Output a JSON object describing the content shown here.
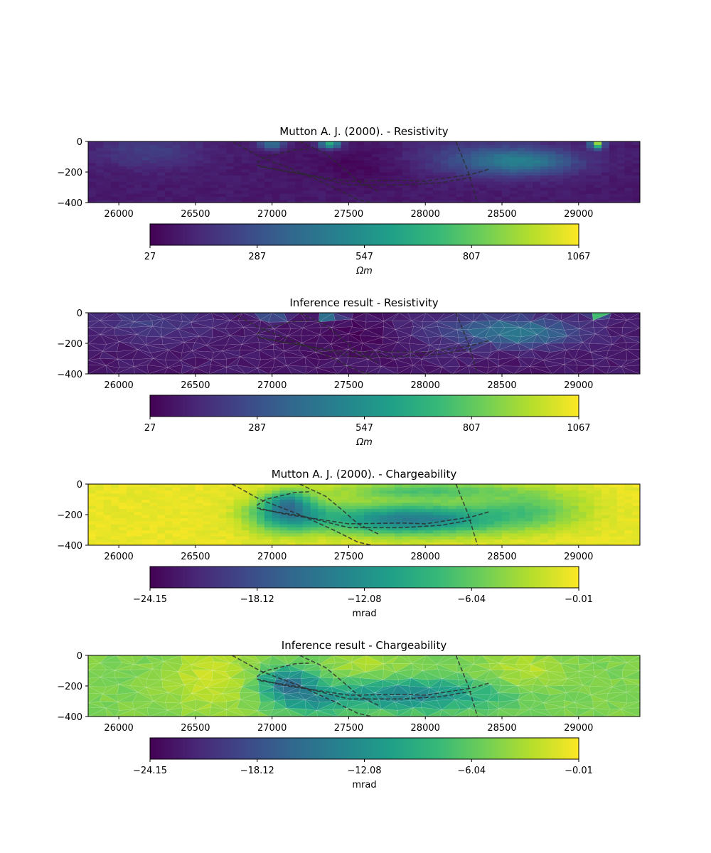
{
  "colors": {
    "viridis": [
      "#440154",
      "#482878",
      "#3e4989",
      "#31688e",
      "#26828e",
      "#1f9e89",
      "#35b779",
      "#6ece58",
      "#b5de2b",
      "#fde725"
    ],
    "fault_line": "#2b2b2b"
  },
  "chart_data": [
    {
      "type": "heatmap",
      "title": "Mutton A. J. (2000). - Resistivity",
      "kind": "grid",
      "field": "resistivity",
      "xlim": [
        25800,
        29400
      ],
      "ylim": [
        -400,
        0
      ],
      "xticks": [
        "26000",
        "26500",
        "27000",
        "27500",
        "28000",
        "28500",
        "29000"
      ],
      "yticks": [
        "0",
        "−200",
        "−400"
      ],
      "colorbar": {
        "ticks": [
          "27",
          "287",
          "547",
          "807",
          "1067"
        ],
        "label": "Ωm",
        "range": [
          27,
          1067
        ]
      }
    },
    {
      "type": "heatmap",
      "title": "Inference result - Resistivity",
      "kind": "mesh",
      "field": "resistivity",
      "xlim": [
        25800,
        29400
      ],
      "ylim": [
        -400,
        0
      ],
      "xticks": [
        "26000",
        "26500",
        "27000",
        "27500",
        "28000",
        "28500",
        "29000"
      ],
      "yticks": [
        "0",
        "−200",
        "−400"
      ],
      "colorbar": {
        "ticks": [
          "27",
          "287",
          "547",
          "807",
          "1067"
        ],
        "label": "Ωm",
        "range": [
          27,
          1067
        ]
      }
    },
    {
      "type": "heatmap",
      "title": "Mutton A. J. (2000). - Chargeability",
      "kind": "grid",
      "field": "chargeability",
      "xlim": [
        25800,
        29400
      ],
      "ylim": [
        -400,
        0
      ],
      "xticks": [
        "26000",
        "26500",
        "27000",
        "27500",
        "28000",
        "28500",
        "29000"
      ],
      "yticks": [
        "0",
        "−200",
        "−400"
      ],
      "colorbar": {
        "ticks": [
          "−24.15",
          "−18.12",
          "−12.08",
          "−6.04",
          "−0.01"
        ],
        "label": "mrad",
        "range": [
          -24.15,
          -0.01
        ]
      }
    },
    {
      "type": "heatmap",
      "title": "Inference result - Chargeability",
      "kind": "mesh",
      "field": "chargeability",
      "xlim": [
        25800,
        29400
      ],
      "ylim": [
        -400,
        0
      ],
      "xticks": [
        "26000",
        "26500",
        "27000",
        "27500",
        "28000",
        "28500",
        "29000"
      ],
      "yticks": [
        "0",
        "−200",
        "−400"
      ],
      "colorbar": {
        "ticks": [
          "−24.15",
          "−18.12",
          "−12.08",
          "−6.04",
          "−0.01"
        ],
        "label": "mrad",
        "range": [
          -24.15,
          -0.01
        ]
      }
    }
  ],
  "overlay_lines": [
    {
      "name": "fault-1",
      "points": [
        [
          26740,
          0
        ],
        [
          26920,
          -100
        ],
        [
          27180,
          -200
        ],
        [
          27400,
          -300
        ],
        [
          27560,
          -380
        ],
        [
          27650,
          -400
        ]
      ]
    },
    {
      "name": "fault-2",
      "points": [
        [
          27180,
          0
        ],
        [
          27350,
          -80
        ],
        [
          27470,
          -180
        ],
        [
          27560,
          -260
        ],
        [
          27700,
          -330
        ]
      ]
    },
    {
      "name": "fault-3",
      "points": [
        [
          28200,
          0
        ],
        [
          28280,
          -200
        ],
        [
          28340,
          -400
        ]
      ]
    },
    {
      "name": "ore-body-upper",
      "points": [
        [
          26900,
          -140
        ],
        [
          26960,
          -100
        ],
        [
          27150,
          -55
        ],
        [
          27240,
          -50
        ]
      ]
    },
    {
      "name": "ore-body-middle",
      "points": [
        [
          26900,
          -155
        ],
        [
          27100,
          -200
        ],
        [
          27500,
          -260
        ],
        [
          27850,
          -255
        ],
        [
          28000,
          -260
        ],
        [
          28300,
          -215
        ],
        [
          28420,
          -180
        ]
      ]
    },
    {
      "name": "ore-body-lower",
      "points": [
        [
          26920,
          -165
        ],
        [
          27200,
          -210
        ],
        [
          27500,
          -285
        ],
        [
          27850,
          -285
        ],
        [
          28100,
          -270
        ],
        [
          28300,
          -235
        ]
      ]
    }
  ]
}
